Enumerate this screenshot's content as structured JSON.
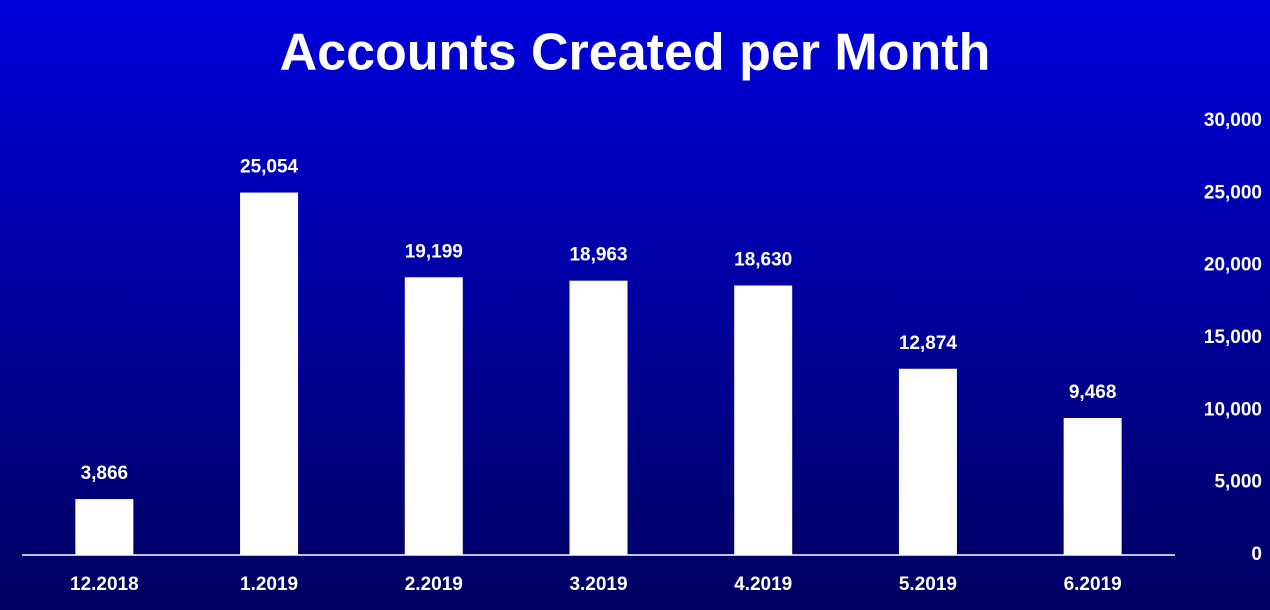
{
  "chart_data": {
    "type": "bar",
    "title": "Accounts Created per Month",
    "categories": [
      "12.2018",
      "1.2019",
      "2.2019",
      "3.2019",
      "4.2019",
      "5.2019",
      "6.2019"
    ],
    "values": [
      3866,
      25054,
      19199,
      18963,
      18630,
      12874,
      9468
    ],
    "value_labels": [
      "3,866",
      "25,054",
      "19,199",
      "18,963",
      "18,630",
      "12,874",
      "9,468"
    ],
    "color": "#ffffff",
    "ylim": [
      0,
      30000
    ],
    "yticks": [
      0,
      {
        "value": 5000,
        "label": "5,000"
      },
      {
        "value": 10000,
        "label": "10,000"
      },
      {
        "value": 15000,
        "label": "15,000"
      },
      {
        "value": 20000,
        "label": "20,000"
      },
      {
        "value": 25000,
        "label": "25,000"
      },
      {
        "value": 30000,
        "label": "30,000"
      }
    ],
    "y_axis_side": "right",
    "grid": false
  }
}
